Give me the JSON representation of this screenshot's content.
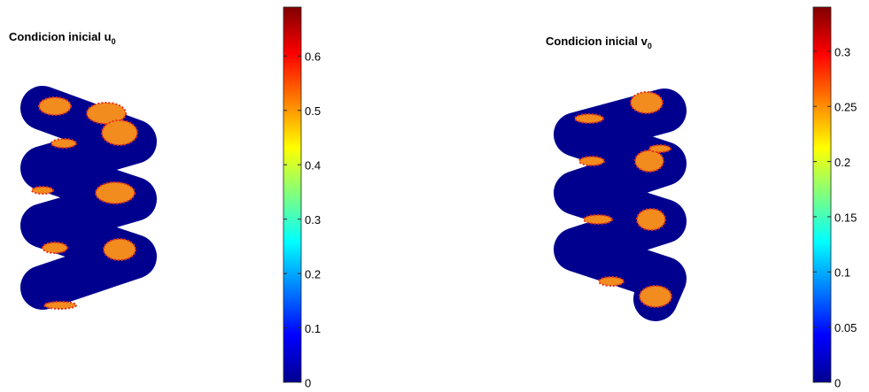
{
  "chart_data": [
    {
      "type": "surface",
      "title": "Condicion inicial u",
      "title_subscript": "0",
      "colormap": "jet",
      "ylim": [
        0,
        0.69
      ],
      "yticks": [
        0,
        0.1,
        0.2,
        0.3,
        0.4,
        0.5,
        0.6
      ]
    },
    {
      "type": "surface",
      "title": "Condicion inicial v",
      "title_subscript": "0",
      "colormap": "jet",
      "ylim": [
        0,
        0.34
      ],
      "yticks": [
        0,
        0.05,
        0.1,
        0.15,
        0.2,
        0.25,
        0.3
      ]
    }
  ]
}
